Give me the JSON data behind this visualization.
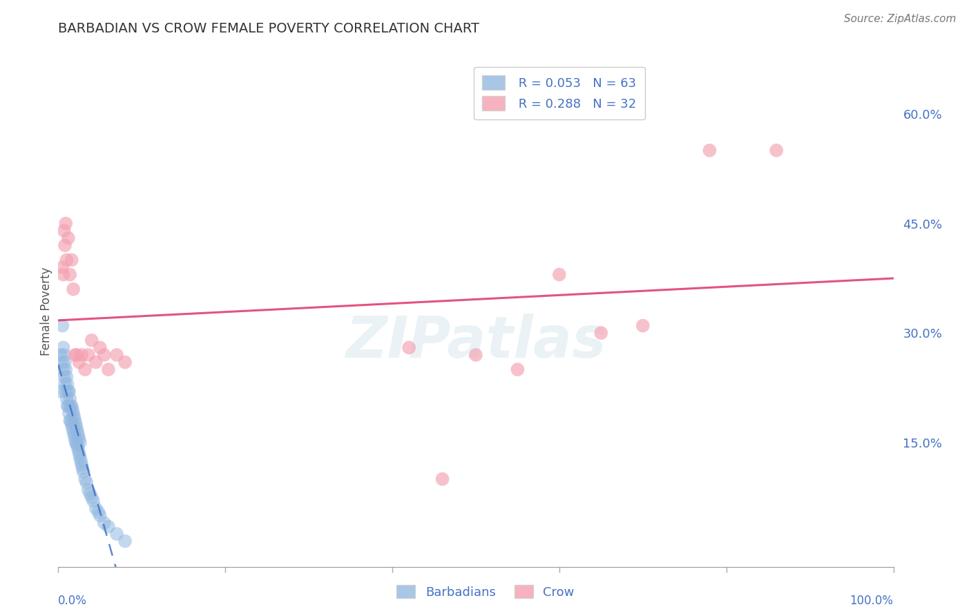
{
  "title": "BARBADIAN VS CROW FEMALE POVERTY CORRELATION CHART",
  "source": "Source: ZipAtlas.com",
  "ylabel": "Female Poverty",
  "y_ticks_right": [
    0.0,
    0.15,
    0.3,
    0.45,
    0.6
  ],
  "y_tick_labels_right": [
    "",
    "15.0%",
    "30.0%",
    "45.0%",
    "60.0%"
  ],
  "xlim": [
    0.0,
    1.0
  ],
  "ylim": [
    -0.02,
    0.68
  ],
  "background_color": "#ffffff",
  "grid_color": "#d0d0d0",
  "barbadian_color": "#92b8e0",
  "crow_color": "#f4a0b0",
  "barbadian_line_color": "#3a6bc4",
  "crow_line_color": "#e04070",
  "R_barbadian": 0.053,
  "N_barbadian": 63,
  "R_crow": 0.288,
  "N_crow": 32,
  "watermark": "ZIPatlas",
  "barbadian_x": [
    0.003,
    0.004,
    0.005,
    0.005,
    0.006,
    0.006,
    0.007,
    0.007,
    0.008,
    0.008,
    0.009,
    0.009,
    0.01,
    0.01,
    0.011,
    0.011,
    0.012,
    0.012,
    0.013,
    0.013,
    0.014,
    0.014,
    0.015,
    0.015,
    0.016,
    0.016,
    0.017,
    0.017,
    0.018,
    0.018,
    0.019,
    0.019,
    0.02,
    0.02,
    0.021,
    0.021,
    0.022,
    0.022,
    0.023,
    0.023,
    0.024,
    0.024,
    0.025,
    0.025,
    0.026,
    0.026,
    0.027,
    0.028,
    0.029,
    0.03,
    0.032,
    0.034,
    0.036,
    0.038,
    0.04,
    0.042,
    0.045,
    0.048,
    0.05,
    0.055,
    0.06,
    0.07,
    0.08
  ],
  "barbadian_y": [
    0.27,
    0.22,
    0.26,
    0.31,
    0.25,
    0.28,
    0.24,
    0.27,
    0.23,
    0.26,
    0.22,
    0.25,
    0.21,
    0.24,
    0.2,
    0.23,
    0.2,
    0.22,
    0.19,
    0.22,
    0.18,
    0.21,
    0.18,
    0.2,
    0.175,
    0.2,
    0.17,
    0.195,
    0.165,
    0.19,
    0.16,
    0.185,
    0.155,
    0.18,
    0.15,
    0.175,
    0.148,
    0.17,
    0.145,
    0.165,
    0.14,
    0.16,
    0.135,
    0.155,
    0.13,
    0.15,
    0.125,
    0.12,
    0.115,
    0.11,
    0.1,
    0.095,
    0.085,
    0.08,
    0.075,
    0.07,
    0.06,
    0.055,
    0.05,
    0.04,
    0.035,
    0.025,
    0.015
  ],
  "crow_x": [
    0.005,
    0.006,
    0.007,
    0.008,
    0.009,
    0.01,
    0.012,
    0.014,
    0.016,
    0.018,
    0.02,
    0.022,
    0.025,
    0.028,
    0.032,
    0.036,
    0.04,
    0.045,
    0.05,
    0.055,
    0.06,
    0.07,
    0.08,
    0.42,
    0.46,
    0.5,
    0.55,
    0.6,
    0.65,
    0.7,
    0.78,
    0.86
  ],
  "crow_y": [
    0.39,
    0.38,
    0.44,
    0.42,
    0.45,
    0.4,
    0.43,
    0.38,
    0.4,
    0.36,
    0.27,
    0.27,
    0.26,
    0.27,
    0.25,
    0.27,
    0.29,
    0.26,
    0.28,
    0.27,
    0.25,
    0.27,
    0.26,
    0.28,
    0.1,
    0.27,
    0.25,
    0.38,
    0.3,
    0.31,
    0.55,
    0.55
  ]
}
